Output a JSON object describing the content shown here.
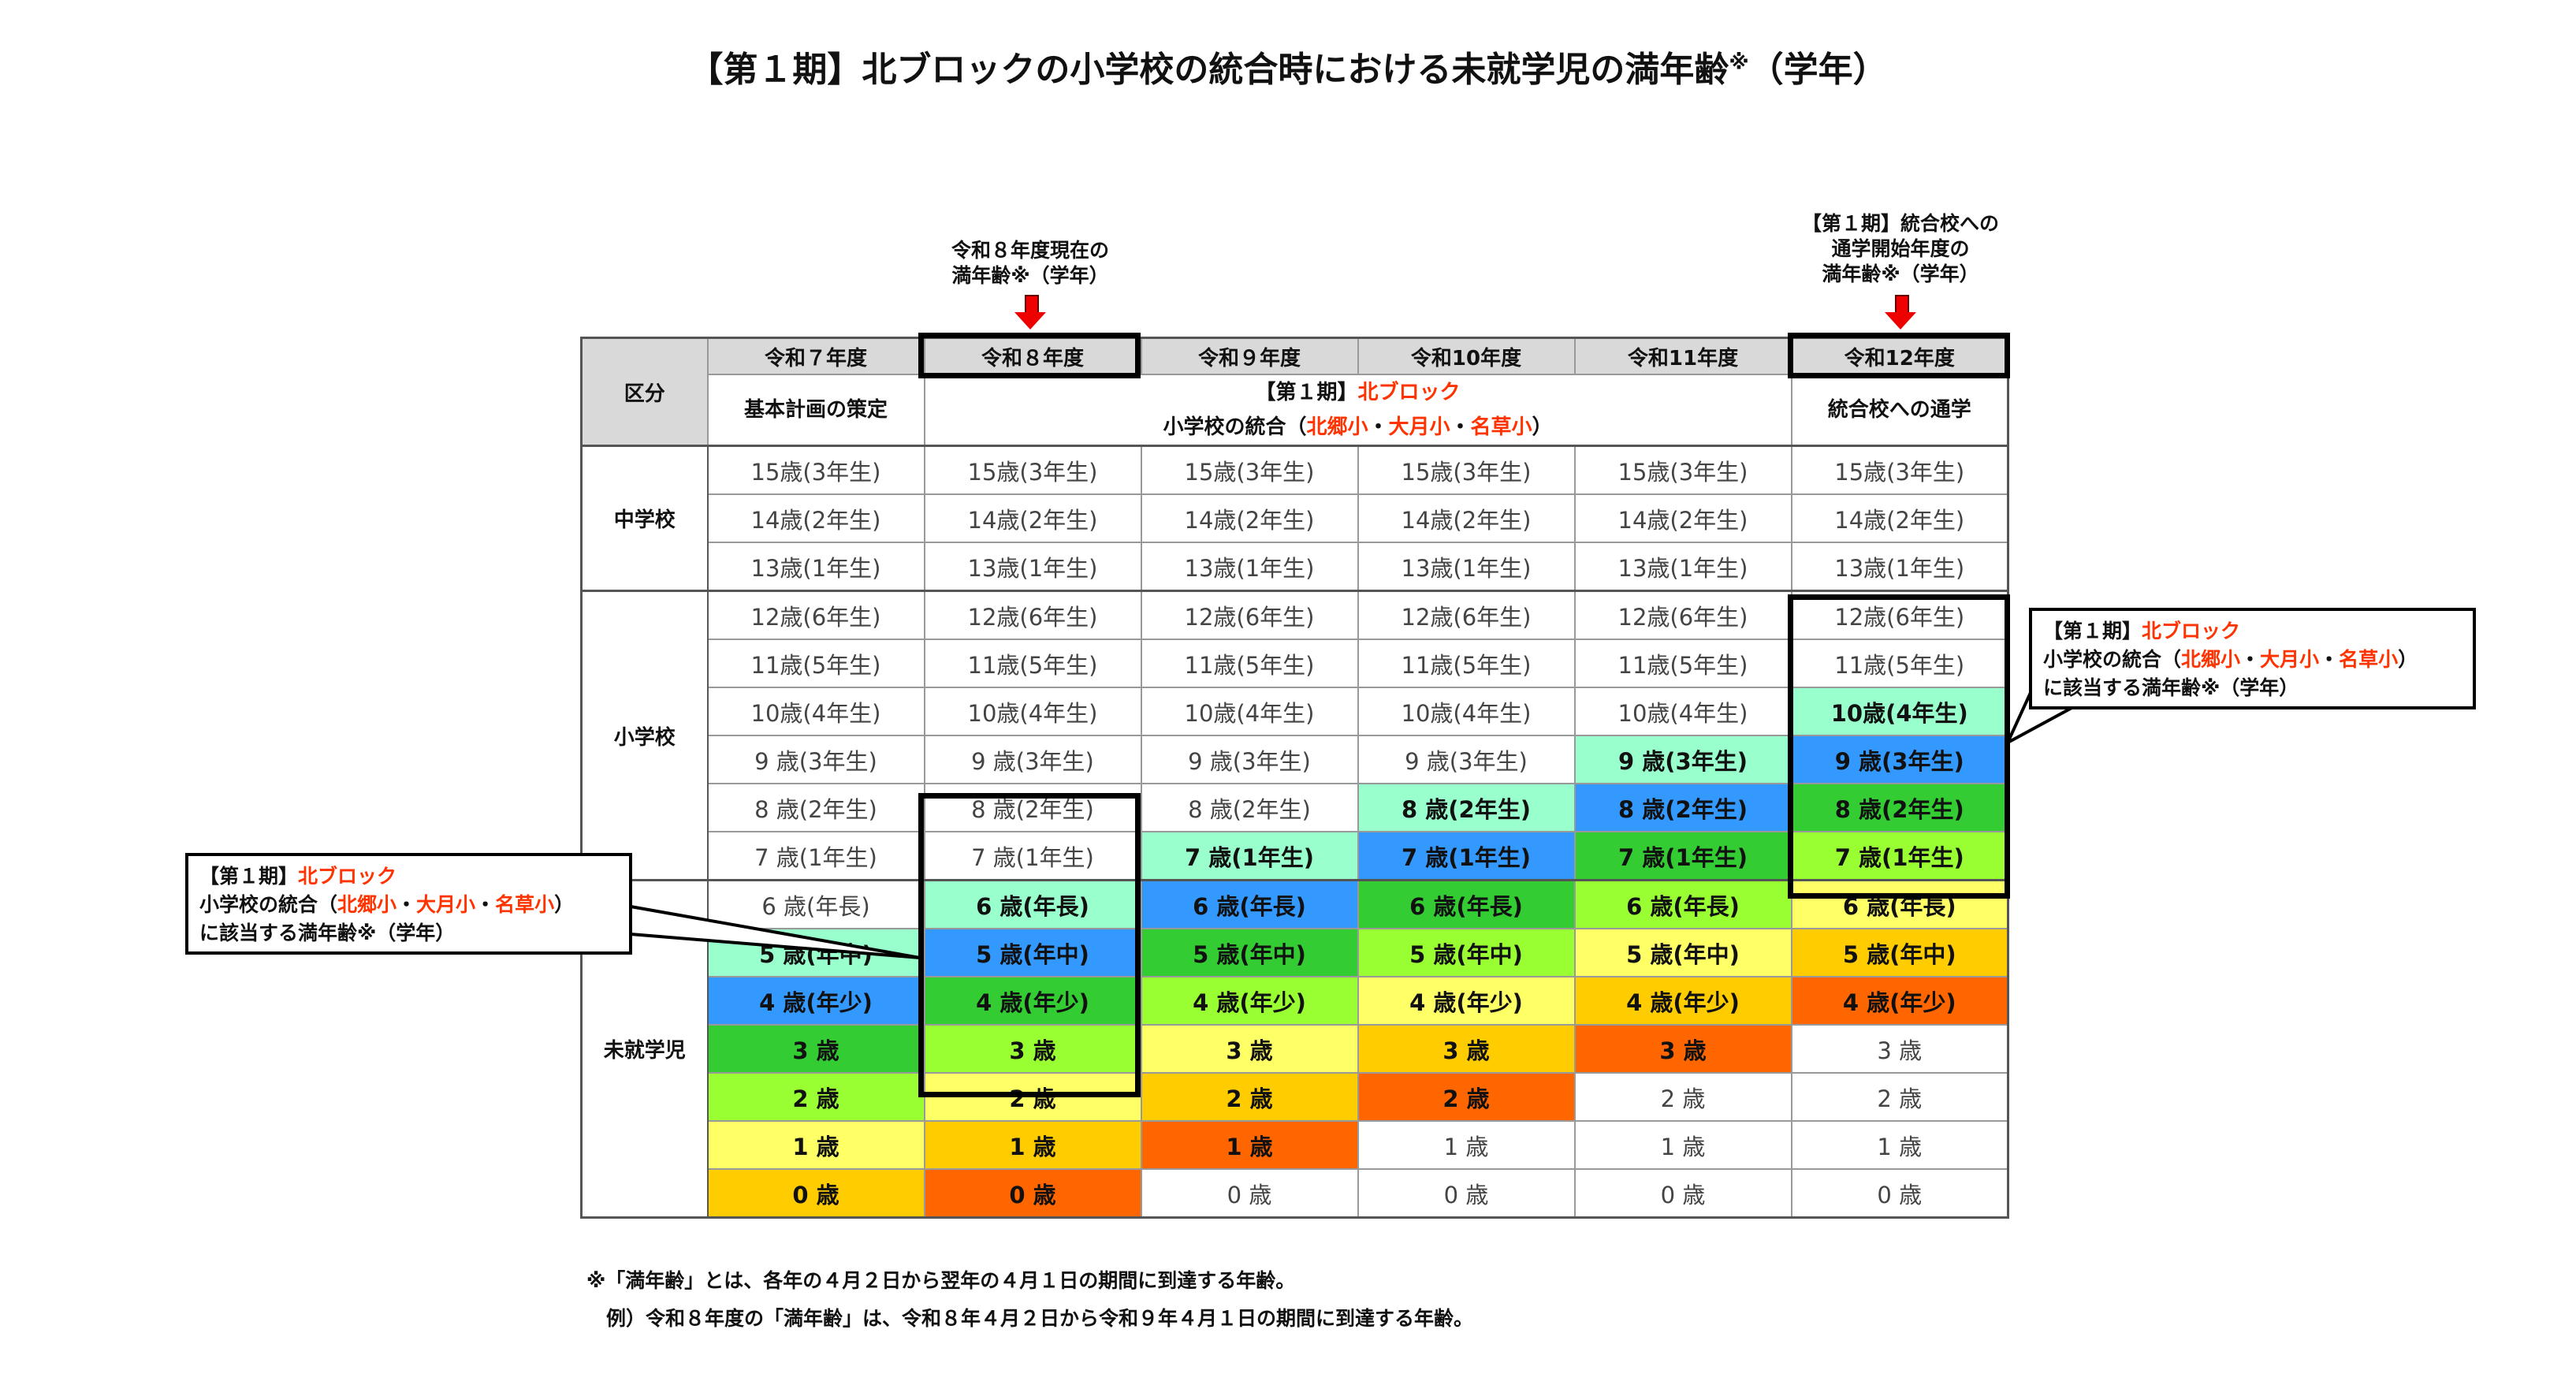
{
  "title": "【第１期】北ブロックの小学校の統合時における未就学児の満年齢",
  "title_mark": "※",
  "title_suffix": "（学年）",
  "annotation_left": "令和８年度現在の\n満年齢※（学年）",
  "annotation_right": "【第１期】統合校への\n通学開始年度の\n満年齢※（学年）",
  "header": {
    "category": "区分",
    "years": [
      "令和７年度",
      "令和８年度",
      "令和９年度",
      "令和10年度",
      "令和11年度",
      "令和12年度"
    ],
    "phase1": "基本計画の策定",
    "phase2_line1_prefix": "【第１期】",
    "phase2_line1_red": "北ブロック",
    "phase2_line2_prefix": "小学校の統合（",
    "phase2_line2_red1": "北郷小",
    "phase2_sep": "・",
    "phase2_line2_red2": "大月小",
    "phase2_line2_red3": "名草小",
    "phase2_line2_suffix": "）",
    "phase3": "統合校への通学"
  },
  "sections": [
    {
      "label": "中学校",
      "start": 0,
      "span": 3
    },
    {
      "label": "小学校",
      "start": 3,
      "span": 6
    },
    {
      "label": "未就学児",
      "start": 9,
      "span": 7
    }
  ],
  "rows": [
    {
      "text": "15歳(3年生)",
      "age": 15
    },
    {
      "text": "14歳(2年生)",
      "age": 14
    },
    {
      "text": "13歳(1年生)",
      "age": 13
    },
    {
      "text": "12歳(6年生)",
      "age": 12
    },
    {
      "text": "11歳(5年生)",
      "age": 11
    },
    {
      "text": "10歳(4年生)",
      "age": 10
    },
    {
      "text": "9 歳(3年生)",
      "age": 9
    },
    {
      "text": "8 歳(2年生)",
      "age": 8
    },
    {
      "text": "7 歳(1年生)",
      "age": 7
    },
    {
      "text": "6 歳(年長)",
      "age": 6
    },
    {
      "text": "5 歳(年中)",
      "age": 5
    },
    {
      "text": "4 歳(年少)",
      "age": 4
    },
    {
      "text": "3 歳",
      "age": 3
    },
    {
      "text": "2 歳",
      "age": 2
    },
    {
      "text": "1 歳",
      "age": 1
    },
    {
      "text": "0 歳",
      "age": 0
    }
  ],
  "year_numbers": [
    7,
    8,
    9,
    10,
    11,
    12
  ],
  "cohort_colors": {
    "2": "#99ffcc",
    "3": "#3399ff",
    "4": "#33cc33",
    "5": "#99ff33",
    "6": "#ffff66",
    "7": "#ffcc00",
    "8": "#ff6600"
  },
  "callout": {
    "line1_prefix": "【第１期】",
    "line1_red": "北ブロック",
    "line2_prefix": "小学校の統合（",
    "red1": "北郷小",
    "sep": "・",
    "red2": "大月小",
    "red3": "名草小",
    "line2_suffix": "）",
    "line3": "に該当する満年齢※（学年）"
  },
  "accent_red": "#ff3300",
  "footnotes": [
    "※「満年齢」とは、各年の４月２日から翌年の４月１日の期間に到達する年齢。",
    "　例）令和８年度の「満年齢」は、令和８年４月２日から令和９年４月１日の期間に到達する年齢。"
  ]
}
